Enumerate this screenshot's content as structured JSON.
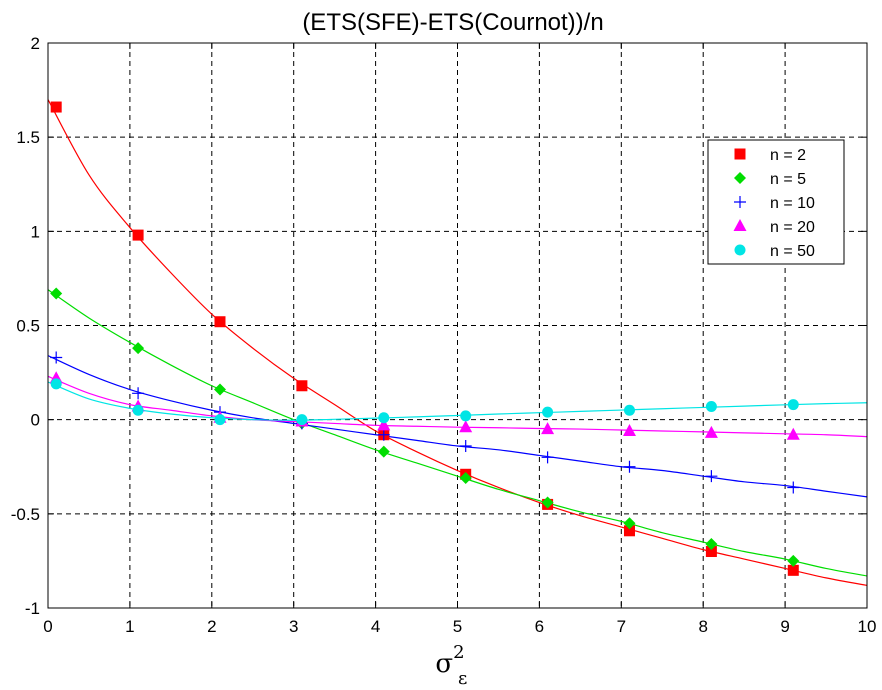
{
  "chart_data": {
    "type": "line",
    "title": "(ETS(SFE)-ETS(Cournot))/n",
    "xlabel": "σ",
    "xlabel_superscript": "2",
    "xlabel_subscript": "ε",
    "ylabel": "",
    "xlim": [
      0,
      10
    ],
    "ylim": [
      -1,
      2
    ],
    "xticks": [
      0,
      1,
      2,
      3,
      4,
      5,
      6,
      7,
      8,
      9,
      10
    ],
    "xtick_labels": [
      "0",
      "1",
      "2",
      "3",
      "4",
      "5",
      "6",
      "7",
      "8",
      "9",
      "10"
    ],
    "yticks": [
      -1,
      -0.5,
      0,
      0.5,
      1,
      1.5,
      2
    ],
    "ytick_labels": [
      "-1",
      "-0.5",
      "0",
      "0.5",
      "1",
      "1.5",
      "2"
    ],
    "grid": true,
    "legend_position": "top-right",
    "series": [
      {
        "name": "n = 2",
        "color": "#ff0000",
        "marker": "square",
        "x": [
          0.1,
          1.1,
          2.1,
          3.1,
          4.1,
          5.1,
          6.1,
          7.1,
          8.1,
          9.1
        ],
        "y": [
          1.66,
          0.98,
          0.52,
          0.18,
          -0.08,
          -0.29,
          -0.45,
          -0.59,
          -0.7,
          -0.8
        ],
        "curve_x": [
          0,
          0.5,
          1,
          1.5,
          2,
          2.5,
          3,
          3.5,
          4,
          4.5,
          5,
          5.5,
          6,
          6.5,
          7,
          7.5,
          8,
          8.5,
          9,
          9.5,
          10
        ],
        "curve_y": [
          1.7,
          1.3,
          1.02,
          0.78,
          0.56,
          0.38,
          0.22,
          0.08,
          -0.06,
          -0.17,
          -0.27,
          -0.36,
          -0.44,
          -0.51,
          -0.57,
          -0.63,
          -0.69,
          -0.74,
          -0.79,
          -0.84,
          -0.88
        ]
      },
      {
        "name": "n = 5",
        "color": "#00dd00",
        "marker": "diamond",
        "x": [
          0.1,
          1.1,
          2.1,
          3.1,
          4.1,
          5.1,
          6.1,
          7.1,
          8.1,
          9.1
        ],
        "y": [
          0.67,
          0.38,
          0.16,
          -0.02,
          -0.17,
          -0.31,
          -0.44,
          -0.55,
          -0.66,
          -0.75
        ],
        "curve_x": [
          0,
          0.5,
          1,
          1.5,
          2,
          2.5,
          3,
          3.5,
          4,
          4.5,
          5,
          5.5,
          6,
          6.5,
          7,
          7.5,
          8,
          8.5,
          9,
          9.5,
          10
        ],
        "curve_y": [
          0.69,
          0.54,
          0.41,
          0.29,
          0.18,
          0.09,
          0.0,
          -0.08,
          -0.16,
          -0.23,
          -0.3,
          -0.37,
          -0.43,
          -0.49,
          -0.54,
          -0.6,
          -0.65,
          -0.7,
          -0.74,
          -0.79,
          -0.83
        ]
      },
      {
        "name": "n = 10",
        "color": "#0000ff",
        "marker": "plus",
        "x": [
          0.1,
          1.1,
          2.1,
          3.1,
          4.1,
          5.1,
          6.1,
          7.1,
          8.1,
          9.1
        ],
        "y": [
          0.33,
          0.14,
          0.04,
          -0.02,
          -0.08,
          -0.14,
          -0.2,
          -0.25,
          -0.3,
          -0.36
        ],
        "curve_x": [
          0,
          0.5,
          1,
          1.5,
          2,
          2.5,
          3,
          3.5,
          4,
          4.5,
          5,
          5.5,
          6,
          6.5,
          7,
          7.5,
          8,
          8.5,
          9,
          9.5,
          10
        ],
        "curve_y": [
          0.34,
          0.24,
          0.16,
          0.1,
          0.05,
          0.01,
          -0.02,
          -0.05,
          -0.08,
          -0.11,
          -0.14,
          -0.16,
          -0.19,
          -0.22,
          -0.25,
          -0.27,
          -0.3,
          -0.33,
          -0.35,
          -0.38,
          -0.41
        ]
      },
      {
        "name": "n = 20",
        "color": "#ff00ff",
        "marker": "triangle",
        "x": [
          0.1,
          1.1,
          2.1,
          3.1,
          4.1,
          5.1,
          6.1,
          7.1,
          8.1,
          9.1
        ],
        "y": [
          0.22,
          0.07,
          0.01,
          -0.01,
          -0.03,
          -0.04,
          -0.05,
          -0.06,
          -0.07,
          -0.08
        ],
        "curve_x": [
          0,
          0.5,
          1,
          1.5,
          2,
          2.5,
          3,
          3.5,
          4,
          4.5,
          5,
          5.5,
          6,
          6.5,
          7,
          7.5,
          8,
          8.5,
          9,
          9.5,
          10
        ],
        "curve_y": [
          0.23,
          0.14,
          0.08,
          0.05,
          0.02,
          0.0,
          -0.01,
          -0.02,
          -0.03,
          -0.035,
          -0.04,
          -0.043,
          -0.047,
          -0.05,
          -0.055,
          -0.06,
          -0.065,
          -0.07,
          -0.075,
          -0.08,
          -0.09
        ]
      },
      {
        "name": "n = 50",
        "color": "#00e5e5",
        "marker": "circle",
        "x": [
          0.1,
          1.1,
          2.1,
          3.1,
          4.1,
          5.1,
          6.1,
          7.1,
          8.1,
          9.1
        ],
        "y": [
          0.19,
          0.05,
          0.0,
          0.0,
          0.01,
          0.02,
          0.04,
          0.05,
          0.07,
          0.08
        ],
        "curve_x": [
          0,
          0.5,
          1,
          1.5,
          2,
          2.5,
          3,
          3.5,
          4,
          4.5,
          5,
          5.5,
          6,
          6.5,
          7,
          7.5,
          8,
          8.5,
          9,
          9.5,
          10
        ],
        "curve_y": [
          0.2,
          0.11,
          0.06,
          0.03,
          0.01,
          0.0,
          -0.003,
          0.002,
          0.008,
          0.015,
          0.022,
          0.03,
          0.037,
          0.044,
          0.051,
          0.058,
          0.065,
          0.072,
          0.079,
          0.085,
          0.09
        ]
      }
    ]
  }
}
